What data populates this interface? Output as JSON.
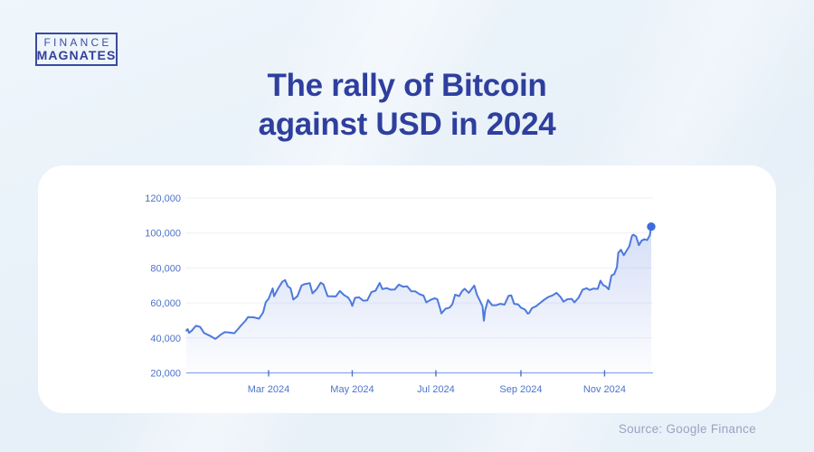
{
  "logo": {
    "line1": "FINANCE",
    "line2": "MAGNATES"
  },
  "header": {
    "title_line1": "The rally of Bitcoin",
    "title_line2": "against USD in 2024"
  },
  "footer": {
    "source": "Source: Google Finance"
  },
  "colors": {
    "title_blue": "#2f3f9e",
    "logo_blue": "#3a4a9f",
    "line_blue": "#4e79dd",
    "dot_blue": "#3e6bdb",
    "axis_label_blue": "#4d73cb",
    "baseline_blue": "#8aa4e6",
    "gridline": "#eef0f6",
    "area_fill": "#7c98e4",
    "card_bg": "#ffffff",
    "page_bg": "#e8f1f9",
    "source_gray": "#99a4c2"
  },
  "chart_data": {
    "type": "line",
    "title": "The rally of Bitcoin against USD in 2024",
    "xlabel": "",
    "ylabel": "",
    "legend": "none",
    "grid": "horizontal",
    "x_encoding": "day index of 2024 (0 = Jan 1, 339 = Dec 5)",
    "xlim_days": [
      0,
      339
    ],
    "ylim": [
      20000,
      125000
    ],
    "y_ticks": [
      {
        "value": 120000,
        "label": "120,000"
      },
      {
        "value": 100000,
        "label": "100,000"
      },
      {
        "value": 80000,
        "label": "80,000"
      },
      {
        "value": 60000,
        "label": "60,000"
      },
      {
        "value": 40000,
        "label": "40,000"
      },
      {
        "value": 20000,
        "label": "20,000"
      }
    ],
    "x_ticks": [
      {
        "day": 60,
        "label": "Mar 2024"
      },
      {
        "day": 121,
        "label": "May 2024"
      },
      {
        "day": 182,
        "label": "Jul 2024"
      },
      {
        "day": 244,
        "label": "Sep 2024"
      },
      {
        "day": 305,
        "label": "Nov 2024"
      }
    ],
    "end_point": {
      "day": 339,
      "value": 103600
    },
    "points": [
      [
        0,
        44200
      ],
      [
        1,
        45000
      ],
      [
        2,
        42900
      ],
      [
        4,
        44200
      ],
      [
        7,
        46900
      ],
      [
        10,
        46300
      ],
      [
        13,
        42800
      ],
      [
        17,
        41300
      ],
      [
        21,
        39500
      ],
      [
        22,
        39900
      ],
      [
        25,
        41800
      ],
      [
        28,
        43300
      ],
      [
        31,
        43100
      ],
      [
        35,
        42700
      ],
      [
        38,
        45300
      ],
      [
        40,
        47200
      ],
      [
        43,
        49700
      ],
      [
        45,
        51900
      ],
      [
        49,
        51800
      ],
      [
        53,
        51000
      ],
      [
        56,
        54500
      ],
      [
        58,
        60500
      ],
      [
        60,
        62400
      ],
      [
        63,
        68300
      ],
      [
        64,
        63800
      ],
      [
        67,
        68300
      ],
      [
        70,
        72100
      ],
      [
        72,
        73100
      ],
      [
        74,
        69500
      ],
      [
        76,
        68400
      ],
      [
        78,
        61900
      ],
      [
        81,
        63800
      ],
      [
        84,
        69900
      ],
      [
        86,
        70700
      ],
      [
        90,
        71300
      ],
      [
        92,
        65500
      ],
      [
        95,
        67800
      ],
      [
        98,
        71600
      ],
      [
        100,
        70600
      ],
      [
        103,
        63900
      ],
      [
        106,
        63800
      ],
      [
        109,
        63700
      ],
      [
        112,
        66800
      ],
      [
        115,
        64500
      ],
      [
        118,
        63100
      ],
      [
        120,
        60600
      ],
      [
        121,
        58300
      ],
      [
        123,
        62900
      ],
      [
        126,
        63200
      ],
      [
        129,
        61300
      ],
      [
        132,
        61500
      ],
      [
        135,
        66200
      ],
      [
        138,
        67000
      ],
      [
        141,
        71400
      ],
      [
        143,
        67900
      ],
      [
        146,
        68500
      ],
      [
        149,
        67600
      ],
      [
        152,
        67700
      ],
      [
        155,
        70500
      ],
      [
        158,
        69300
      ],
      [
        161,
        69500
      ],
      [
        164,
        66700
      ],
      [
        167,
        66600
      ],
      [
        170,
        65000
      ],
      [
        173,
        64200
      ],
      [
        175,
        60300
      ],
      [
        178,
        61700
      ],
      [
        181,
        62700
      ],
      [
        183,
        62100
      ],
      [
        185,
        57000
      ],
      [
        186,
        54000
      ],
      [
        189,
        56700
      ],
      [
        192,
        57300
      ],
      [
        194,
        59200
      ],
      [
        196,
        64700
      ],
      [
        199,
        63900
      ],
      [
        201,
        66700
      ],
      [
        203,
        68100
      ],
      [
        206,
        65800
      ],
      [
        208,
        67900
      ],
      [
        210,
        69900
      ],
      [
        212,
        64600
      ],
      [
        214,
        61400
      ],
      [
        216,
        58100
      ],
      [
        217,
        49800
      ],
      [
        218,
        56000
      ],
      [
        220,
        61700
      ],
      [
        223,
        58700
      ],
      [
        226,
        58700
      ],
      [
        229,
        59500
      ],
      [
        232,
        59000
      ],
      [
        235,
        64100
      ],
      [
        237,
        64300
      ],
      [
        239,
        59500
      ],
      [
        242,
        59100
      ],
      [
        244,
        57300
      ],
      [
        247,
        56200
      ],
      [
        249,
        53900
      ],
      [
        250,
        54200
      ],
      [
        252,
        57000
      ],
      [
        255,
        58100
      ],
      [
        258,
        60000
      ],
      [
        261,
        61800
      ],
      [
        264,
        63400
      ],
      [
        267,
        64300
      ],
      [
        270,
        65800
      ],
      [
        273,
        63300
      ],
      [
        275,
        60700
      ],
      [
        278,
        62100
      ],
      [
        281,
        62300
      ],
      [
        283,
        60300
      ],
      [
        286,
        62900
      ],
      [
        289,
        67600
      ],
      [
        292,
        68400
      ],
      [
        294,
        67400
      ],
      [
        297,
        68200
      ],
      [
        300,
        68000
      ],
      [
        302,
        72700
      ],
      [
        304,
        70200
      ],
      [
        306,
        69400
      ],
      [
        308,
        67800
      ],
      [
        310,
        75600
      ],
      [
        312,
        76500
      ],
      [
        314,
        80400
      ],
      [
        315,
        88700
      ],
      [
        317,
        90400
      ],
      [
        319,
        87300
      ],
      [
        321,
        89800
      ],
      [
        323,
        92300
      ],
      [
        325,
        98400
      ],
      [
        326,
        99000
      ],
      [
        328,
        98000
      ],
      [
        330,
        93000
      ],
      [
        332,
        95600
      ],
      [
        334,
        96400
      ],
      [
        336,
        95900
      ],
      [
        338,
        98700
      ],
      [
        339,
        103600
      ]
    ]
  }
}
